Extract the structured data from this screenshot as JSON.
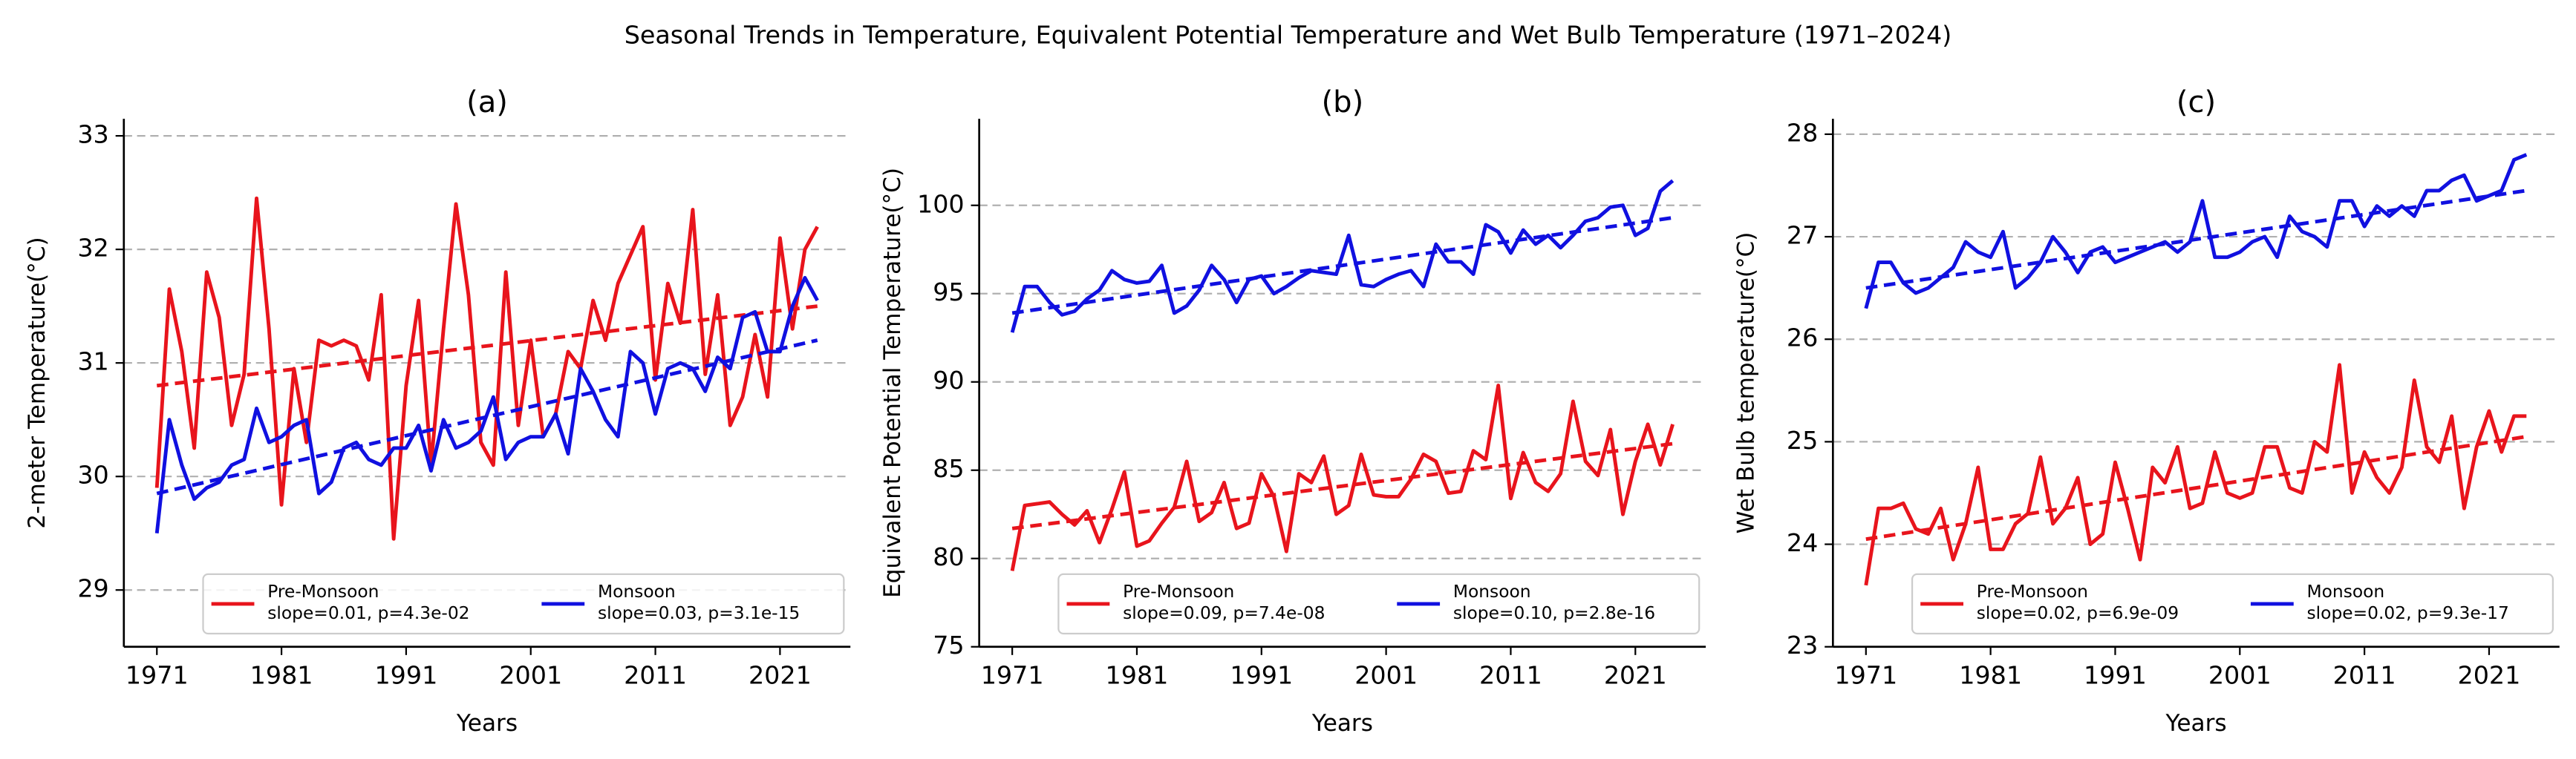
{
  "title": "Seasonal Trends in Temperature, Equivalent Potential Temperature and Wet Bulb Temperature (1971–2024)",
  "chart_data": [
    {
      "type": "line",
      "title": "(a)",
      "xlabel": "Years",
      "ylabel": "2-meter Temperature(°C)",
      "x": [
        1971,
        1972,
        1973,
        1974,
        1975,
        1976,
        1977,
        1978,
        1979,
        1980,
        1981,
        1982,
        1983,
        1984,
        1985,
        1986,
        1987,
        1988,
        1989,
        1990,
        1991,
        1992,
        1993,
        1994,
        1995,
        1996,
        1997,
        1998,
        1999,
        2000,
        2001,
        2002,
        2003,
        2004,
        2005,
        2006,
        2007,
        2008,
        2009,
        2010,
        2011,
        2012,
        2013,
        2014,
        2015,
        2016,
        2017,
        2018,
        2019,
        2020,
        2021,
        2022,
        2023,
        2024
      ],
      "xlim": [
        1968.35,
        2026.65
      ],
      "xticks": [
        1971,
        1981,
        1991,
        2001,
        2011,
        2021
      ],
      "ylim": [
        28.5,
        33.15
      ],
      "yticks": [
        29,
        30,
        31,
        32,
        33
      ],
      "grid": true,
      "legend": "lower right",
      "series": [
        {
          "name": "Pre-Monsoon",
          "label": "slope=0.01, p=4.3e-02",
          "color": "#e8141c",
          "values": [
            29.9,
            31.65,
            31.1,
            30.25,
            31.8,
            31.4,
            30.45,
            30.9,
            32.45,
            31.3,
            29.75,
            30.95,
            30.3,
            31.2,
            31.15,
            31.2,
            31.15,
            30.85,
            31.6,
            29.45,
            30.8,
            31.55,
            30.1,
            31.3,
            32.4,
            31.6,
            30.3,
            30.1,
            31.8,
            30.45,
            31.2,
            30.35,
            30.55,
            31.1,
            30.95,
            31.55,
            31.2,
            31.7,
            31.95,
            32.2,
            30.85,
            31.7,
            31.35,
            32.35,
            30.9,
            31.6,
            30.45,
            30.7,
            31.25,
            30.7,
            32.1,
            31.3,
            32.0,
            32.2
          ],
          "trend": [
            30.8,
            31.5
          ]
        },
        {
          "name": "Monsoon",
          "label": "slope=0.03, p=3.1e-15",
          "color": "#1010e0",
          "values": [
            29.5,
            30.5,
            30.1,
            29.8,
            29.9,
            29.95,
            30.1,
            30.15,
            30.6,
            30.3,
            30.35,
            30.45,
            30.5,
            29.85,
            29.95,
            30.25,
            30.3,
            30.15,
            30.1,
            30.25,
            30.25,
            30.45,
            30.05,
            30.5,
            30.25,
            30.3,
            30.4,
            30.7,
            30.15,
            30.3,
            30.35,
            30.35,
            30.55,
            30.2,
            30.95,
            30.75,
            30.5,
            30.35,
            31.1,
            31.0,
            30.55,
            30.95,
            31.0,
            30.95,
            30.75,
            31.05,
            30.95,
            31.4,
            31.45,
            31.1,
            31.1,
            31.5,
            31.75,
            31.55
          ],
          "trend": [
            29.85,
            31.2
          ]
        }
      ]
    },
    {
      "type": "line",
      "title": "(b)",
      "xlabel": "Years",
      "ylabel": "Equivalent Potential Temperature(°C)",
      "x": [
        1971,
        1972,
        1973,
        1974,
        1975,
        1976,
        1977,
        1978,
        1979,
        1980,
        1981,
        1982,
        1983,
        1984,
        1985,
        1986,
        1987,
        1988,
        1989,
        1990,
        1991,
        1992,
        1993,
        1994,
        1995,
        1996,
        1997,
        1998,
        1999,
        2000,
        2001,
        2002,
        2003,
        2004,
        2005,
        2006,
        2007,
        2008,
        2009,
        2010,
        2011,
        2012,
        2013,
        2014,
        2015,
        2016,
        2017,
        2018,
        2019,
        2020,
        2021,
        2022,
        2023,
        2024
      ],
      "xlim": [
        1968.35,
        2026.65
      ],
      "xticks": [
        1971,
        1981,
        1991,
        2001,
        2011,
        2021
      ],
      "ylim": [
        75,
        104.9
      ],
      "yticks": [
        75,
        80,
        85,
        90,
        95,
        100
      ],
      "grid": true,
      "legend": "lower right",
      "series": [
        {
          "name": "Pre-Monsoon",
          "label": "slope=0.09, p=7.4e-08",
          "color": "#e8141c",
          "values": [
            79.3,
            83.0,
            83.1,
            83.2,
            82.5,
            81.9,
            82.7,
            80.9,
            82.8,
            84.9,
            80.7,
            81.0,
            82.0,
            82.9,
            85.5,
            82.1,
            82.6,
            84.3,
            81.7,
            82.0,
            84.8,
            83.5,
            80.4,
            84.8,
            84.3,
            85.8,
            82.5,
            83.0,
            85.9,
            83.6,
            83.5,
            83.5,
            84.5,
            85.9,
            85.5,
            83.7,
            83.8,
            86.1,
            85.6,
            89.8,
            83.4,
            86.0,
            84.3,
            83.8,
            84.8,
            88.9,
            85.5,
            84.7,
            87.3,
            82.5,
            85.5,
            87.6,
            85.3,
            87.6
          ],
          "trend": [
            81.7,
            86.5
          ]
        },
        {
          "name": "Monsoon",
          "label": "slope=0.10, p=2.8e-16",
          "color": "#1010e0",
          "values": [
            92.8,
            95.4,
            95.4,
            94.5,
            93.8,
            94.0,
            94.7,
            95.2,
            96.3,
            95.8,
            95.6,
            95.7,
            96.6,
            93.9,
            94.3,
            95.2,
            96.6,
            95.8,
            94.5,
            95.8,
            96.0,
            95.0,
            95.4,
            95.9,
            96.3,
            96.2,
            96.1,
            98.3,
            95.5,
            95.4,
            95.8,
            96.1,
            96.3,
            95.4,
            97.8,
            96.8,
            96.8,
            96.1,
            98.9,
            98.5,
            97.3,
            98.6,
            97.8,
            98.3,
            97.6,
            98.3,
            99.1,
            99.3,
            99.9,
            100.0,
            98.3,
            98.7,
            100.8,
            101.4
          ],
          "trend": [
            93.9,
            99.3
          ]
        }
      ]
    },
    {
      "type": "line",
      "title": "(c)",
      "xlabel": "Years",
      "ylabel": "Wet Bulb temperature(°C)",
      "x": [
        1971,
        1972,
        1973,
        1974,
        1975,
        1976,
        1977,
        1978,
        1979,
        1980,
        1981,
        1982,
        1983,
        1984,
        1985,
        1986,
        1987,
        1988,
        1989,
        1990,
        1991,
        1992,
        1993,
        1994,
        1995,
        1996,
        1997,
        1998,
        1999,
        2000,
        2001,
        2002,
        2003,
        2004,
        2005,
        2006,
        2007,
        2008,
        2009,
        2010,
        2011,
        2012,
        2013,
        2014,
        2015,
        2016,
        2017,
        2018,
        2019,
        2020,
        2021,
        2022,
        2023,
        2024
      ],
      "xlim": [
        1968.35,
        2026.65
      ],
      "xticks": [
        1971,
        1981,
        1991,
        2001,
        2011,
        2021
      ],
      "ylim": [
        23,
        28.15
      ],
      "yticks": [
        23,
        24,
        25,
        26,
        27,
        28
      ],
      "grid": true,
      "legend": "lower right",
      "series": [
        {
          "name": "Pre-Monsoon",
          "label": "slope=0.02, p=6.9e-09",
          "color": "#e8141c",
          "values": [
            23.6,
            24.35,
            24.35,
            24.4,
            24.15,
            24.1,
            24.35,
            23.85,
            24.2,
            24.75,
            23.95,
            23.95,
            24.2,
            24.3,
            24.85,
            24.2,
            24.35,
            24.65,
            24.0,
            24.1,
            24.8,
            24.35,
            23.85,
            24.75,
            24.6,
            24.95,
            24.35,
            24.4,
            24.9,
            24.5,
            24.45,
            24.5,
            24.95,
            24.95,
            24.55,
            24.5,
            25.0,
            24.9,
            25.75,
            24.5,
            24.9,
            24.65,
            24.5,
            24.75,
            25.6,
            24.95,
            24.8,
            25.25,
            24.35,
            24.95,
            25.3,
            24.9,
            25.25,
            25.25
          ],
          "trend": [
            24.05,
            25.05
          ]
        },
        {
          "name": "Monsoon",
          "label": "slope=0.02, p=9.3e-17",
          "color": "#1010e0",
          "values": [
            26.3,
            26.75,
            26.75,
            26.55,
            26.45,
            26.5,
            26.6,
            26.7,
            26.95,
            26.85,
            26.8,
            27.05,
            26.5,
            26.6,
            26.75,
            27.0,
            26.85,
            26.65,
            26.85,
            26.9,
            26.75,
            26.8,
            26.85,
            26.9,
            26.95,
            26.85,
            26.95,
            27.35,
            26.8,
            26.8,
            26.85,
            26.95,
            27.0,
            26.8,
            27.2,
            27.05,
            27.0,
            26.9,
            27.35,
            27.35,
            27.1,
            27.3,
            27.2,
            27.3,
            27.2,
            27.45,
            27.45,
            27.55,
            27.6,
            27.35,
            27.4,
            27.45,
            27.75,
            27.8
          ],
          "trend": [
            26.5,
            27.45
          ]
        }
      ]
    }
  ]
}
